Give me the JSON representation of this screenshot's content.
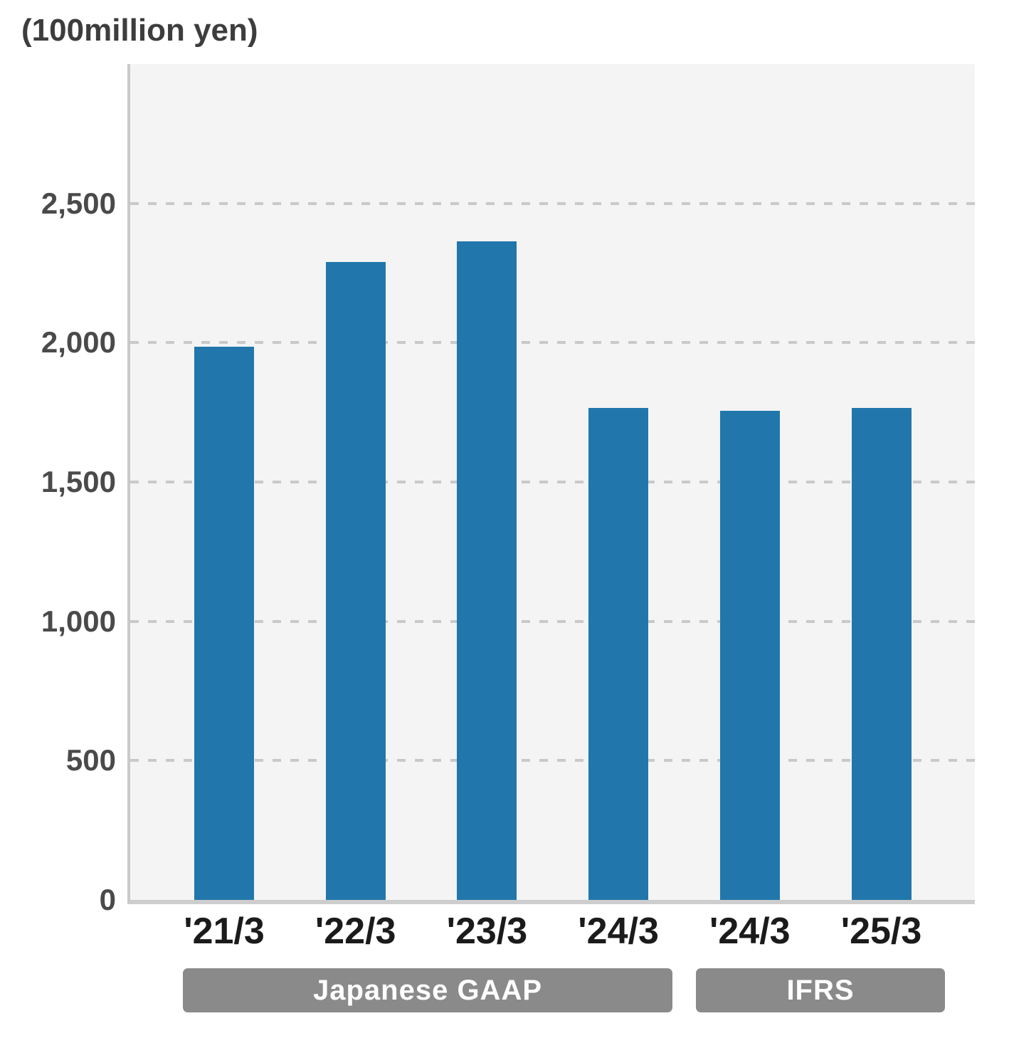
{
  "title": "(100million yen)",
  "chart_data": {
    "type": "bar",
    "title": "(100million yen)",
    "categories": [
      "'21/3",
      "'22/3",
      "'23/3",
      "'24/3",
      "'24/3",
      "'25/3"
    ],
    "values": [
      1985,
      2290,
      2365,
      1765,
      1755,
      1765
    ],
    "xlabel": "",
    "ylabel": "(100million yen)",
    "ylim": [
      0,
      3000
    ],
    "yticks": [
      0,
      500,
      1000,
      1500,
      2000,
      2500
    ],
    "ytick_labels": [
      "0",
      "500",
      "1,000",
      "1,500",
      "2,000",
      "2,500"
    ],
    "grid": "horizontal-dashed",
    "legend": "none",
    "groups": [
      {
        "label": "Japanese GAAP",
        "first_bar": 0,
        "last_bar": 3
      },
      {
        "label": "IFRS",
        "first_bar": 4,
        "last_bar": 5
      }
    ],
    "colors": {
      "bar": "#2177ab",
      "plot_background": "#f4f4f4",
      "gridline": "#c9c9c9",
      "axis_line": "#cdcdcd",
      "group_band": "#8a8a8a",
      "group_band_text": "#ffffff",
      "tick_text": "#4a4a4a",
      "category_text": "#1b1b1b",
      "title_text": "#3d3d3d"
    }
  }
}
